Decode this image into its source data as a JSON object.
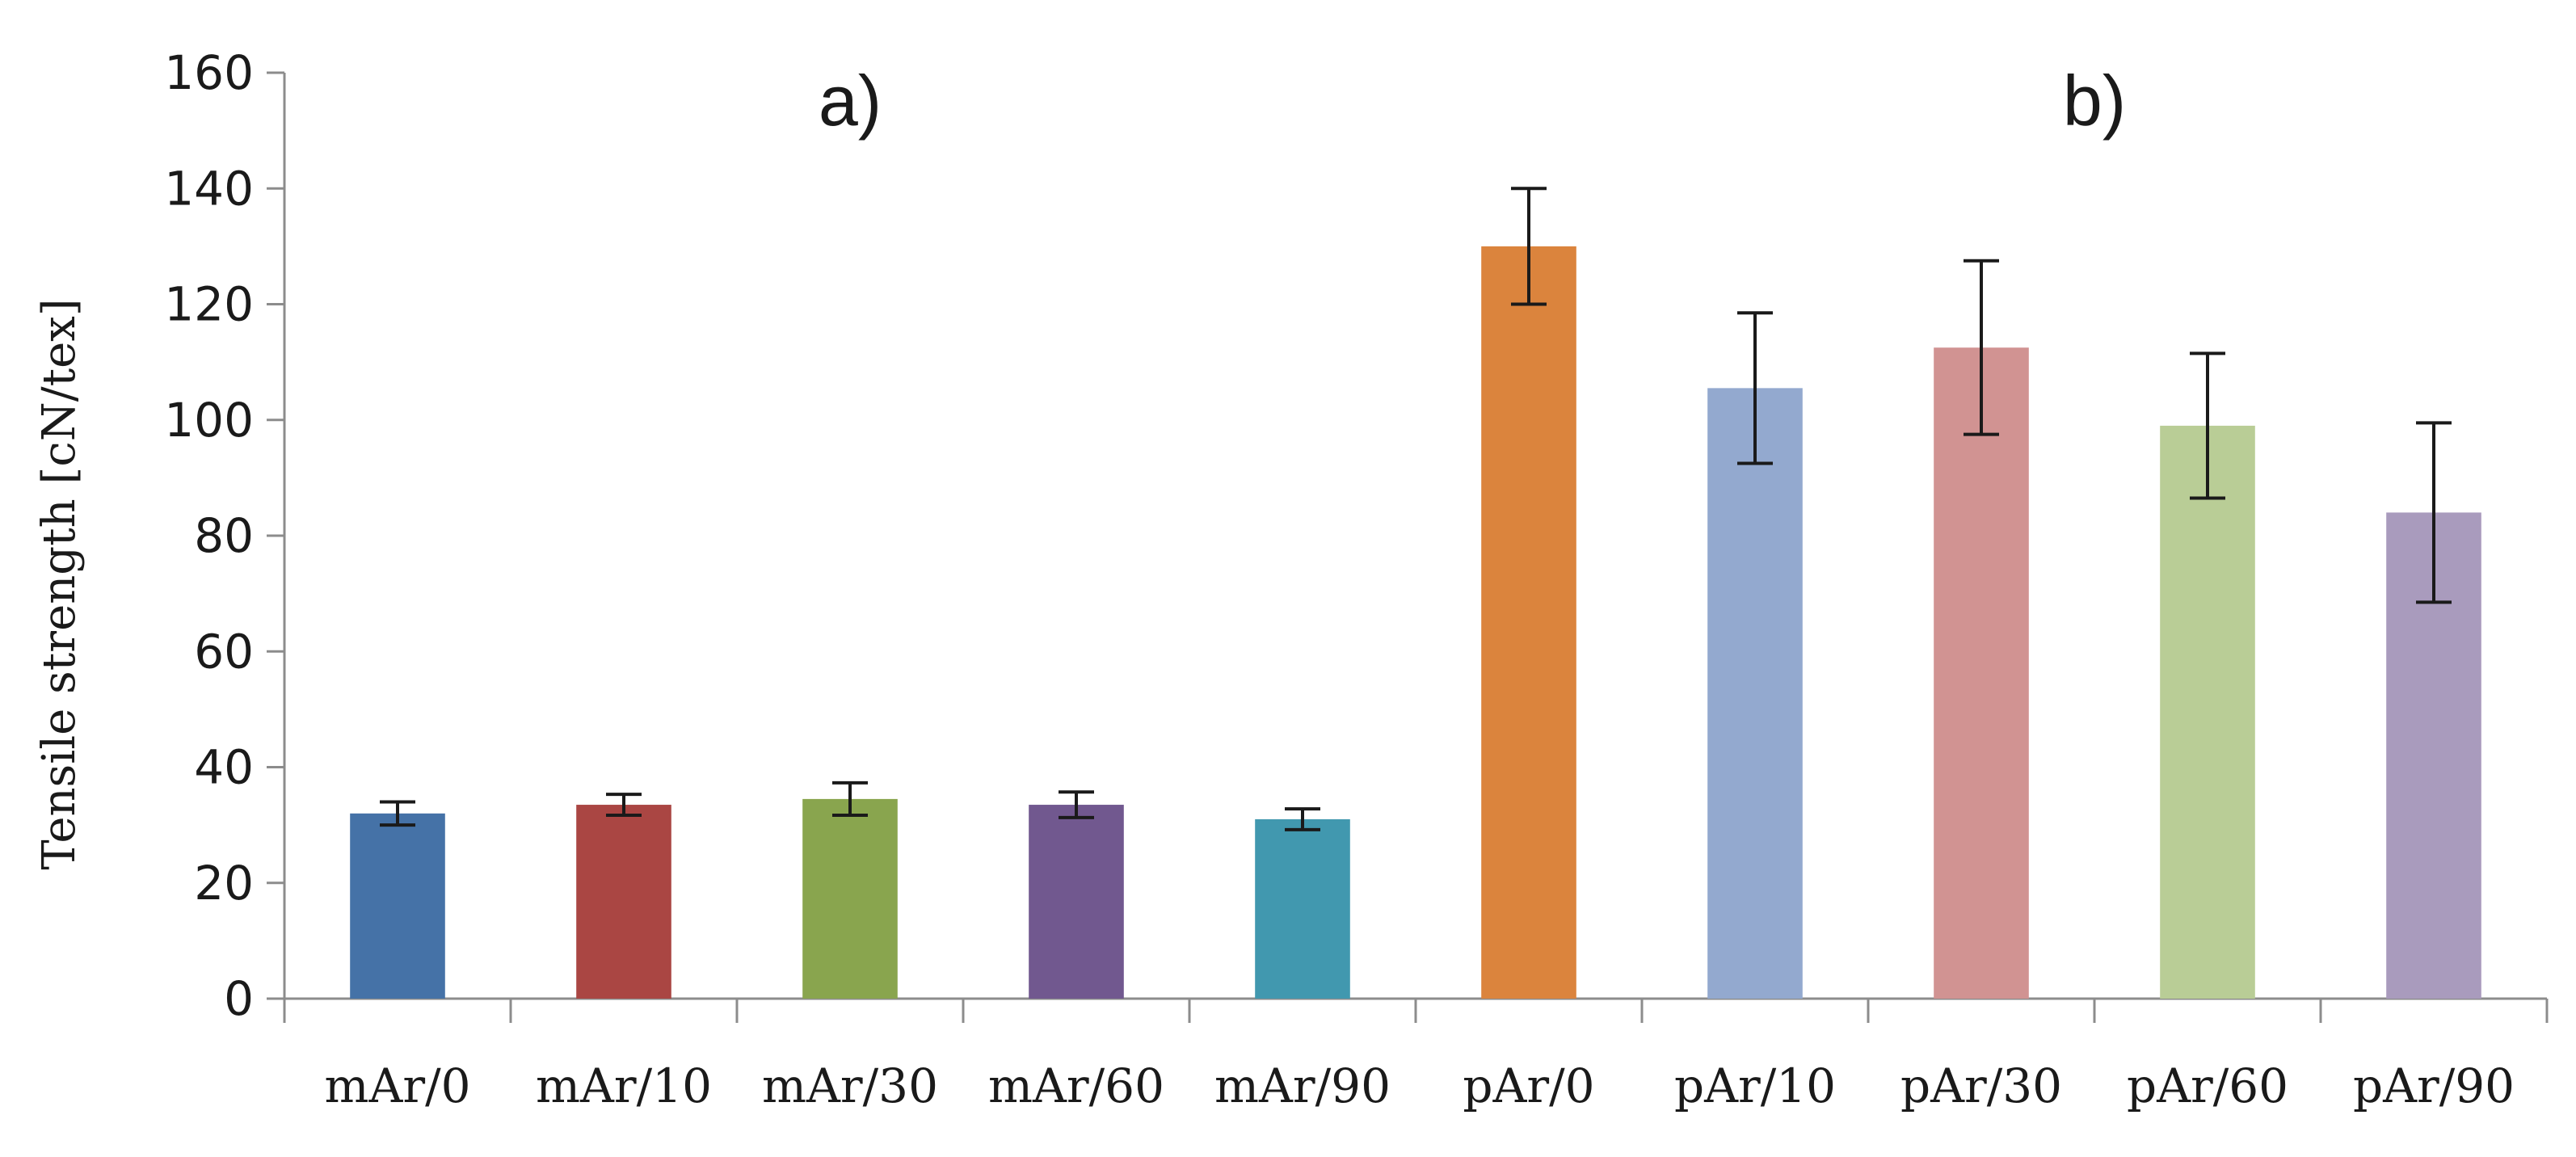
{
  "chart_data": {
    "type": "bar",
    "title": "",
    "xlabel": "",
    "ylabel": "Tensile strength  [cN/tex]",
    "ylim": [
      0,
      160
    ],
    "yticks": [
      0,
      20,
      40,
      60,
      80,
      100,
      120,
      140,
      160
    ],
    "grid": false,
    "annotations": [
      {
        "text": "a)",
        "category_index": 2
      },
      {
        "text": "b)",
        "category_index": 7.5
      }
    ],
    "categories": [
      "mAr/0",
      "mAr/10",
      "mAr/30",
      "mAr/60",
      "mAr/90",
      "pAr/0",
      "pAr/10",
      "pAr/30",
      "pAr/60",
      "pAr/90"
    ],
    "values": [
      32,
      33.5,
      34.5,
      33.5,
      31,
      130,
      105.5,
      112.5,
      99,
      84
    ],
    "errors": [
      2,
      1.8,
      2.8,
      2.2,
      1.8,
      10,
      13,
      15,
      12.5,
      15.5
    ],
    "colors": [
      "#4572A7",
      "#AA4643",
      "#89A54E",
      "#71588F",
      "#4198AF",
      "#DB843D",
      "#93A9CF",
      "#D19392",
      "#B9CD96",
      "#A99BBD"
    ]
  }
}
